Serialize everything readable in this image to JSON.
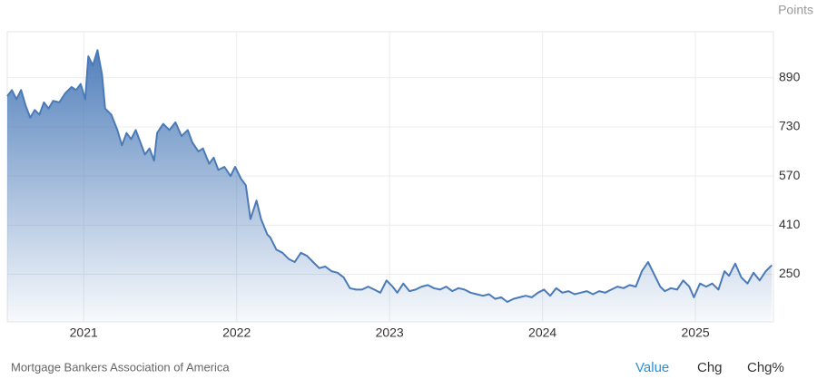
{
  "chart_data": {
    "type": "area",
    "unit_label": "Points",
    "source": "Mortgage Bankers Association of America",
    "tabs": [
      "Value",
      "Chg",
      "Chg%"
    ],
    "color": "#4a7ab8",
    "x": [
      2020.5,
      2020.53,
      2020.56,
      2020.59,
      2020.62,
      2020.65,
      2020.68,
      2020.71,
      2020.74,
      2020.77,
      2020.8,
      2020.84,
      2020.88,
      2020.92,
      2020.95,
      2020.98,
      2021.01,
      2021.03,
      2021.06,
      2021.09,
      2021.12,
      2021.14,
      2021.18,
      2021.22,
      2021.25,
      2021.28,
      2021.31,
      2021.34,
      2021.37,
      2021.4,
      2021.43,
      2021.46,
      2021.48,
      2021.52,
      2021.56,
      2021.6,
      2021.64,
      2021.68,
      2021.71,
      2021.75,
      2021.78,
      2021.82,
      2021.85,
      2021.88,
      2021.92,
      2021.96,
      2021.99,
      2022.03,
      2022.06,
      2022.09,
      2022.13,
      2022.16,
      2022.2,
      2022.22,
      2022.26,
      2022.3,
      2022.34,
      2022.38,
      2022.42,
      2022.46,
      2022.5,
      2022.54,
      2022.58,
      2022.62,
      2022.66,
      2022.7,
      2022.74,
      2022.78,
      2022.82,
      2022.86,
      2022.9,
      2022.94,
      2022.98,
      2023.02,
      2023.05,
      2023.09,
      2023.13,
      2023.17,
      2023.21,
      2023.25,
      2023.29,
      2023.33,
      2023.37,
      2023.41,
      2023.45,
      2023.49,
      2023.53,
      2023.57,
      2023.61,
      2023.65,
      2023.69,
      2023.73,
      2023.77,
      2023.81,
      2023.85,
      2023.89,
      2023.93,
      2023.97,
      2024.01,
      2024.05,
      2024.09,
      2024.13,
      2024.17,
      2024.21,
      2024.25,
      2024.29,
      2024.33,
      2024.37,
      2024.41,
      2024.45,
      2024.49,
      2024.53,
      2024.57,
      2024.61,
      2024.65,
      2024.69,
      2024.73,
      2024.77,
      2024.8,
      2024.84,
      2024.88,
      2024.92,
      2024.96,
      2024.99,
      2025.03,
      2025.07,
      2025.11,
      2025.15,
      2025.19,
      2025.22,
      2025.26,
      2025.3,
      2025.34,
      2025.38,
      2025.42,
      2025.46,
      2025.5
    ],
    "values": [
      830,
      850,
      820,
      850,
      800,
      760,
      785,
      770,
      810,
      790,
      815,
      810,
      840,
      860,
      850,
      870,
      820,
      960,
      930,
      980,
      900,
      790,
      770,
      720,
      670,
      710,
      690,
      720,
      680,
      640,
      660,
      620,
      710,
      740,
      720,
      745,
      700,
      720,
      680,
      650,
      660,
      610,
      630,
      590,
      600,
      570,
      600,
      560,
      540,
      430,
      490,
      430,
      380,
      370,
      330,
      320,
      300,
      290,
      320,
      310,
      290,
      270,
      275,
      260,
      255,
      240,
      205,
      200,
      200,
      210,
      200,
      190,
      230,
      210,
      190,
      220,
      195,
      200,
      210,
      215,
      205,
      200,
      210,
      195,
      205,
      200,
      190,
      185,
      180,
      185,
      170,
      175,
      160,
      170,
      175,
      180,
      175,
      190,
      200,
      180,
      205,
      190,
      195,
      185,
      190,
      195,
      185,
      195,
      190,
      200,
      210,
      205,
      215,
      210,
      260,
      290,
      250,
      210,
      195,
      205,
      200,
      230,
      210,
      175,
      220,
      210,
      220,
      200,
      260,
      245,
      285,
      240,
      220,
      255,
      230,
      260,
      280
    ],
    "xlim": [
      2020.5,
      2025.51
    ],
    "xticks": [
      2021,
      2022,
      2023,
      2024,
      2025
    ],
    "ylim": [
      95,
      1040
    ],
    "yticks": [
      250,
      410,
      570,
      730,
      890
    ],
    "grid": true
  }
}
